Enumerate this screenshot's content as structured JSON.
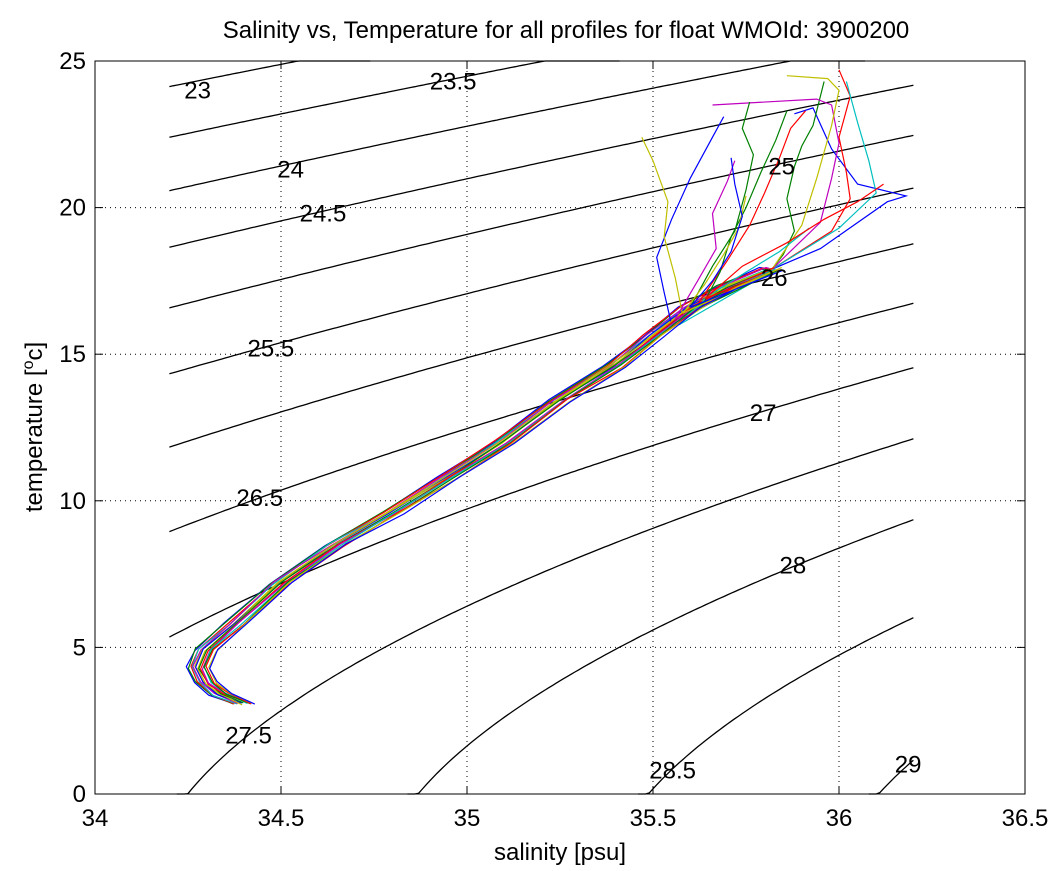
{
  "chart_data": {
    "type": "line",
    "title": "Salinity vs, Temperature for all profiles for float WMOId: 3900200",
    "xlabel": "salinity [psu]",
    "ylabel_main": "temperature [",
    "ylabel_sup": "o",
    "ylabel_tail": "c]",
    "xlim": [
      34,
      36.5
    ],
    "ylim": [
      0,
      25
    ],
    "xticks": [
      34,
      34.5,
      35,
      35.5,
      36,
      36.5
    ],
    "xtick_labels": [
      "34",
      "34.5",
      "35",
      "35.5",
      "36",
      "36.5"
    ],
    "yticks": [
      0,
      5,
      10,
      15,
      20,
      25
    ],
    "ytick_labels": [
      "0",
      "5",
      "10",
      "15",
      "20",
      "25"
    ],
    "grid": true,
    "density_contours": {
      "salinity_range": [
        34.2,
        36.2
      ],
      "levels": [
        23,
        23.5,
        24,
        24.5,
        25,
        25.5,
        26,
        26.5,
        27,
        27.5,
        28,
        28.5,
        29
      ],
      "labels": [
        {
          "text": "23",
          "s": 34.24,
          "t": 24.0
        },
        {
          "text": "23.5",
          "s": 34.9,
          "t": 24.3
        },
        {
          "text": "24",
          "s": 34.49,
          "t": 21.3
        },
        {
          "text": "24.5",
          "s": 34.55,
          "t": 19.8
        },
        {
          "text": "25",
          "s": 35.81,
          "t": 21.4
        },
        {
          "text": "25.5",
          "s": 34.41,
          "t": 15.2
        },
        {
          "text": "26",
          "s": 35.79,
          "t": 17.6
        },
        {
          "text": "26.5",
          "s": 34.38,
          "t": 10.1
        },
        {
          "text": "27",
          "s": 35.76,
          "t": 13.0
        },
        {
          "text": "27.5",
          "s": 34.35,
          "t": 2.0
        },
        {
          "text": "28",
          "s": 35.84,
          "t": 7.8
        },
        {
          "text": "28.5",
          "s": 35.49,
          "t": 0.8
        },
        {
          "text": "29",
          "s": 36.15,
          "t": 1.0
        }
      ]
    },
    "series_colors": [
      "#0000ff",
      "#008000",
      "#ff0000",
      "#00bfbf",
      "#bf00bf",
      "#bfbf00",
      "#000000"
    ],
    "common_profile": [
      [
        34.4,
        3.1
      ],
      [
        34.34,
        3.4
      ],
      [
        34.3,
        3.8
      ],
      [
        34.28,
        4.3
      ],
      [
        34.3,
        4.9
      ],
      [
        34.38,
        5.8
      ],
      [
        34.5,
        7.2
      ],
      [
        34.65,
        8.5
      ],
      [
        34.8,
        9.6
      ],
      [
        34.95,
        10.8
      ],
      [
        35.1,
        12.0
      ],
      [
        35.25,
        13.4
      ],
      [
        35.4,
        14.6
      ],
      [
        35.5,
        15.6
      ],
      [
        35.6,
        16.6
      ],
      [
        35.7,
        17.3
      ],
      [
        35.82,
        17.9
      ]
    ],
    "surface_profiles": [
      {
        "color": "#0000ff",
        "points": [
          [
            35.82,
            17.9
          ],
          [
            35.95,
            18.6
          ],
          [
            36.13,
            20.2
          ],
          [
            36.18,
            20.4
          ],
          [
            36.05,
            20.8
          ],
          [
            35.98,
            22.0
          ],
          [
            35.93,
            23.4
          ],
          [
            35.88,
            23.2
          ]
        ]
      },
      {
        "color": "#008000",
        "points": [
          [
            35.82,
            17.9
          ],
          [
            35.85,
            18.4
          ],
          [
            35.88,
            19.2
          ],
          [
            35.86,
            20.3
          ],
          [
            35.88,
            21.4
          ],
          [
            35.9,
            22.1
          ],
          [
            35.93,
            22.8
          ],
          [
            35.96,
            24.3
          ]
        ]
      },
      {
        "color": "#ff0000",
        "points": [
          [
            35.82,
            17.9
          ],
          [
            35.98,
            19.2
          ],
          [
            36.03,
            20.3
          ],
          [
            36.02,
            21.2
          ],
          [
            36.0,
            22.4
          ],
          [
            36.03,
            23.8
          ],
          [
            36.0,
            24.7
          ]
        ]
      },
      {
        "color": "#00bfbf",
        "points": [
          [
            35.82,
            17.9
          ],
          [
            36.0,
            19.3
          ],
          [
            36.05,
            19.9
          ],
          [
            36.1,
            20.5
          ],
          [
            36.08,
            21.6
          ],
          [
            36.05,
            22.9
          ],
          [
            36.02,
            24.3
          ]
        ]
      },
      {
        "color": "#bf00bf",
        "points": [
          [
            35.82,
            17.9
          ],
          [
            35.95,
            19.5
          ],
          [
            35.98,
            21.0
          ],
          [
            36.0,
            22.2
          ],
          [
            35.98,
            23.5
          ],
          [
            35.94,
            23.7
          ],
          [
            35.66,
            23.5
          ]
        ]
      },
      {
        "color": "#bfbf00",
        "points": [
          [
            35.82,
            17.9
          ],
          [
            35.9,
            19.4
          ],
          [
            35.94,
            21.0
          ],
          [
            35.98,
            22.8
          ],
          [
            36.0,
            24.0
          ],
          [
            35.97,
            24.4
          ],
          [
            35.86,
            24.5
          ]
        ]
      },
      {
        "color": "#0000ff",
        "points": [
          [
            35.55,
            16.0
          ],
          [
            35.53,
            17.1
          ],
          [
            35.51,
            18.3
          ],
          [
            35.55,
            19.6
          ],
          [
            35.6,
            21.0
          ],
          [
            35.66,
            22.4
          ],
          [
            35.69,
            23.1
          ]
        ]
      },
      {
        "color": "#bfbf00",
        "points": [
          [
            35.58,
            16.3
          ],
          [
            35.56,
            17.6
          ],
          [
            35.53,
            19.0
          ],
          [
            35.54,
            20.2
          ],
          [
            35.5,
            21.6
          ],
          [
            35.47,
            22.4
          ]
        ]
      },
      {
        "color": "#008000",
        "points": [
          [
            35.6,
            16.6
          ],
          [
            35.66,
            18.0
          ],
          [
            35.72,
            19.2
          ],
          [
            35.75,
            20.6
          ],
          [
            35.77,
            21.8
          ],
          [
            35.74,
            22.7
          ],
          [
            35.76,
            23.6
          ]
        ]
      },
      {
        "color": "#ff0000",
        "points": [
          [
            35.62,
            16.7
          ],
          [
            35.7,
            18.2
          ],
          [
            35.76,
            19.4
          ],
          [
            35.8,
            20.5
          ],
          [
            35.84,
            21.7
          ],
          [
            35.87,
            22.7
          ],
          [
            35.91,
            23.3
          ]
        ]
      },
      {
        "color": "#bf00bf",
        "points": [
          [
            35.56,
            16.2
          ],
          [
            35.62,
            17.5
          ],
          [
            35.67,
            18.6
          ],
          [
            35.66,
            19.8
          ],
          [
            35.7,
            20.9
          ],
          [
            35.72,
            21.6
          ]
        ]
      },
      {
        "color": "#00bfbf",
        "points": [
          [
            35.57,
            16.0
          ],
          [
            35.65,
            17.0
          ],
          [
            35.75,
            17.8
          ],
          [
            35.84,
            18.5
          ],
          [
            35.92,
            19.3
          ]
        ]
      },
      {
        "color": "#008000",
        "points": [
          [
            35.63,
            16.6
          ],
          [
            35.68,
            17.8
          ],
          [
            35.71,
            19.0
          ],
          [
            35.75,
            20.0
          ],
          [
            35.79,
            21.2
          ],
          [
            35.83,
            22.3
          ],
          [
            35.86,
            23.3
          ]
        ]
      },
      {
        "color": "#ff0000",
        "points": [
          [
            35.64,
            16.9
          ],
          [
            35.74,
            18.0
          ],
          [
            35.86,
            18.8
          ],
          [
            35.96,
            19.6
          ],
          [
            36.05,
            20.2
          ],
          [
            36.12,
            20.8
          ]
        ]
      },
      {
        "color": "#bfbf00",
        "points": [
          [
            35.58,
            16.4
          ],
          [
            35.64,
            17.4
          ],
          [
            35.69,
            18.4
          ],
          [
            35.73,
            19.3
          ],
          [
            35.75,
            20.4
          ]
        ]
      },
      {
        "color": "#0000ff",
        "points": [
          [
            35.6,
            16.6
          ],
          [
            35.66,
            17.5
          ],
          [
            35.71,
            18.5
          ],
          [
            35.74,
            19.7
          ],
          [
            35.72,
            20.8
          ],
          [
            35.71,
            21.7
          ]
        ]
      }
    ]
  }
}
